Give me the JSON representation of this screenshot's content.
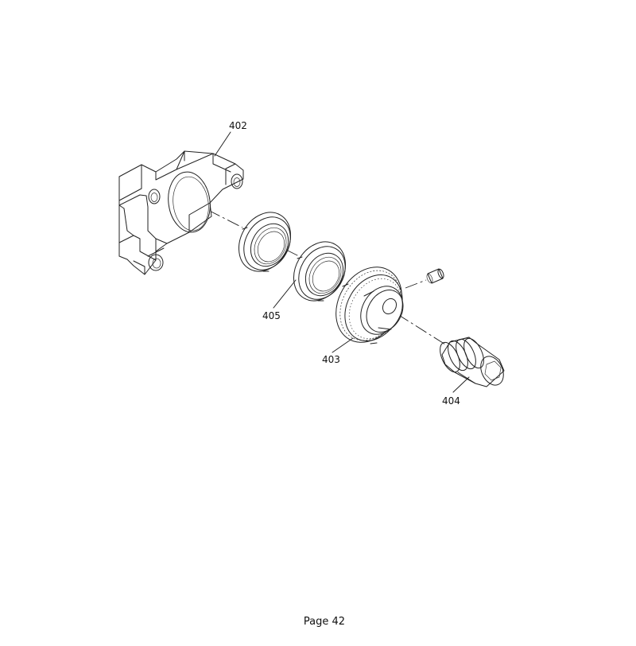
{
  "diagram": {
    "parts": [
      {
        "id": "bracket",
        "label": "402"
      },
      {
        "id": "bearings",
        "label": "405"
      },
      {
        "id": "pulley",
        "label": "403"
      },
      {
        "id": "bushing",
        "label": "404"
      }
    ]
  },
  "footer": {
    "page_label": "Page 42"
  }
}
